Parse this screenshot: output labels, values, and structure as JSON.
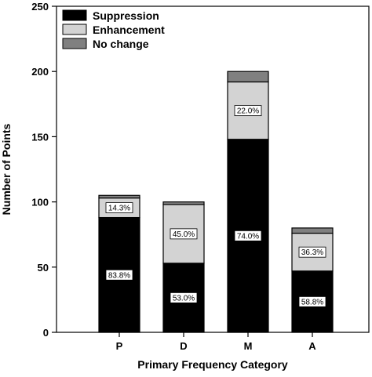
{
  "chart_data": {
    "type": "bar",
    "stacked": true,
    "title": "",
    "xlabel": "Primary Frequency Category",
    "ylabel": "Number of Points",
    "categories": [
      "P",
      "D",
      "M",
      "A"
    ],
    "ylim": [
      0,
      250
    ],
    "yticks": [
      0,
      50,
      100,
      150,
      200,
      250
    ],
    "legend_position": "top-left",
    "series": [
      {
        "name": "Suppression",
        "values": [
          88,
          53,
          148,
          47
        ],
        "color": "#000000",
        "labels": [
          "83.8%",
          "53.0%",
          "74.0%",
          "58.8%"
        ]
      },
      {
        "name": "Enhancement",
        "values": [
          15,
          45,
          44,
          29
        ],
        "color": "#d3d3d3",
        "labels": [
          "14.3%",
          "45.0%",
          "22.0%",
          "36.3%"
        ]
      },
      {
        "name": "No change",
        "values": [
          2,
          2,
          8,
          4
        ],
        "color": "#808080",
        "labels": [
          "",
          "",
          "",
          ""
        ]
      }
    ]
  }
}
